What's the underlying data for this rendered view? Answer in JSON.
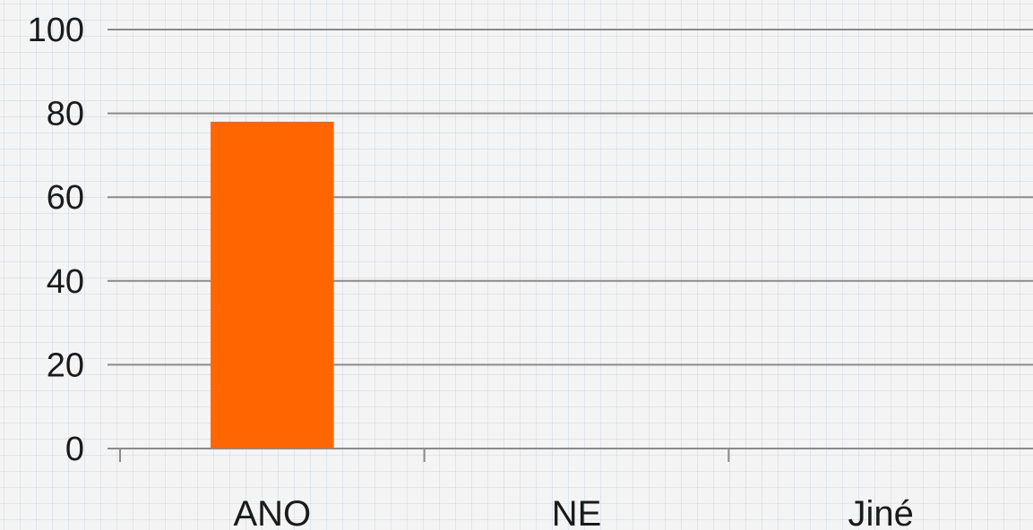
{
  "chart_data": {
    "type": "bar",
    "categories": [
      "ANO",
      "NE",
      "Jiné"
    ],
    "values": [
      78,
      0,
      0
    ],
    "ylim": [
      0,
      100
    ],
    "yticks": [
      0,
      20,
      40,
      60,
      80,
      100
    ],
    "grid": true,
    "title": "",
    "xlabel": "",
    "ylabel": "",
    "colors": {
      "bar": "#ff6600",
      "gridline": "#8a8a8a",
      "axis": "#8a8a8a"
    }
  }
}
